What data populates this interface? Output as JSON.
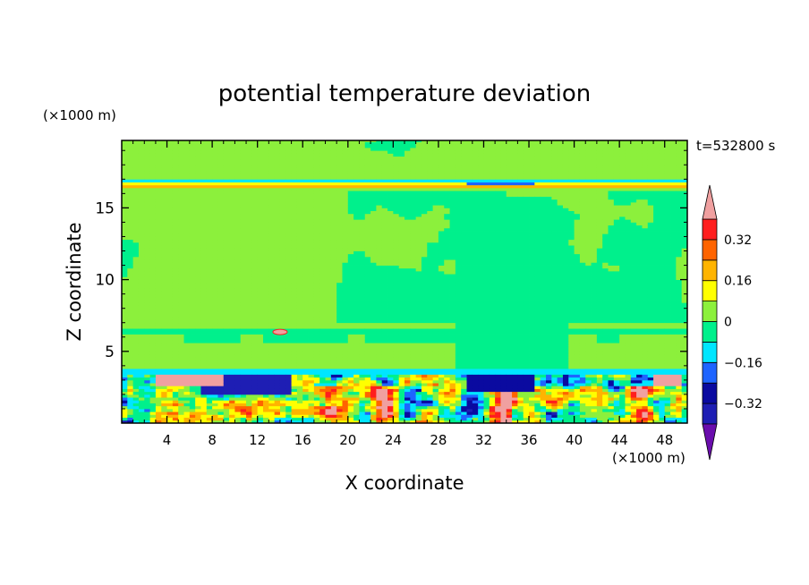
{
  "chart_data": {
    "type": "heatmap",
    "title": "potential temperature deviation",
    "xlabel": "X coordinate",
    "ylabel": "Z coordinate",
    "x_unit": "(×1000 m)",
    "y_unit": "(×1000 m)",
    "time_label": "t=532800 s",
    "xlim": [
      0,
      50
    ],
    "ylim": [
      0,
      19.7
    ],
    "x_ticks": [
      4,
      8,
      12,
      16,
      20,
      24,
      28,
      32,
      36,
      40,
      44,
      48
    ],
    "y_ticks": [
      5,
      10,
      15
    ],
    "colorbar": {
      "levels": [
        -0.4,
        -0.32,
        -0.24,
        -0.16,
        -0.08,
        0,
        0.08,
        0.16,
        0.24,
        0.32,
        0.4
      ],
      "colors": [
        "#6a0dad",
        "#1e1eb4",
        "#0a0aa0",
        "#1e64ff",
        "#00e6ff",
        "#00f08c",
        "#8cf03c",
        "#ffff00",
        "#ffb400",
        "#ff6400",
        "#ff1e1e",
        "#f0a0a0"
      ],
      "labels": [
        "0.32",
        "0.16",
        "0",
        "−0.16",
        "−0.32"
      ],
      "label_values": [
        0.32,
        0.16,
        0,
        -0.16,
        -0.32
      ],
      "extend": "both"
    },
    "background_value": 0.04,
    "features": [
      {
        "name": "tropopause-band",
        "z": [
          16.3,
          17.0
        ],
        "value": 0.2
      },
      {
        "name": "upper-cold-band",
        "z": [
          16.55,
          16.75
        ],
        "x": [
          30.5,
          36.5
        ],
        "value": -0.2
      },
      {
        "name": "mid-cold-layer",
        "z": [
          6.2,
          6.7
        ],
        "value": -0.05
      },
      {
        "name": "convective-plume",
        "x": [
          30,
          40
        ],
        "z": [
          3.5,
          15.7
        ],
        "value": -0.04
      },
      {
        "name": "boundary-layer",
        "z": [
          0,
          3.5
        ],
        "value": "mixed"
      }
    ]
  }
}
